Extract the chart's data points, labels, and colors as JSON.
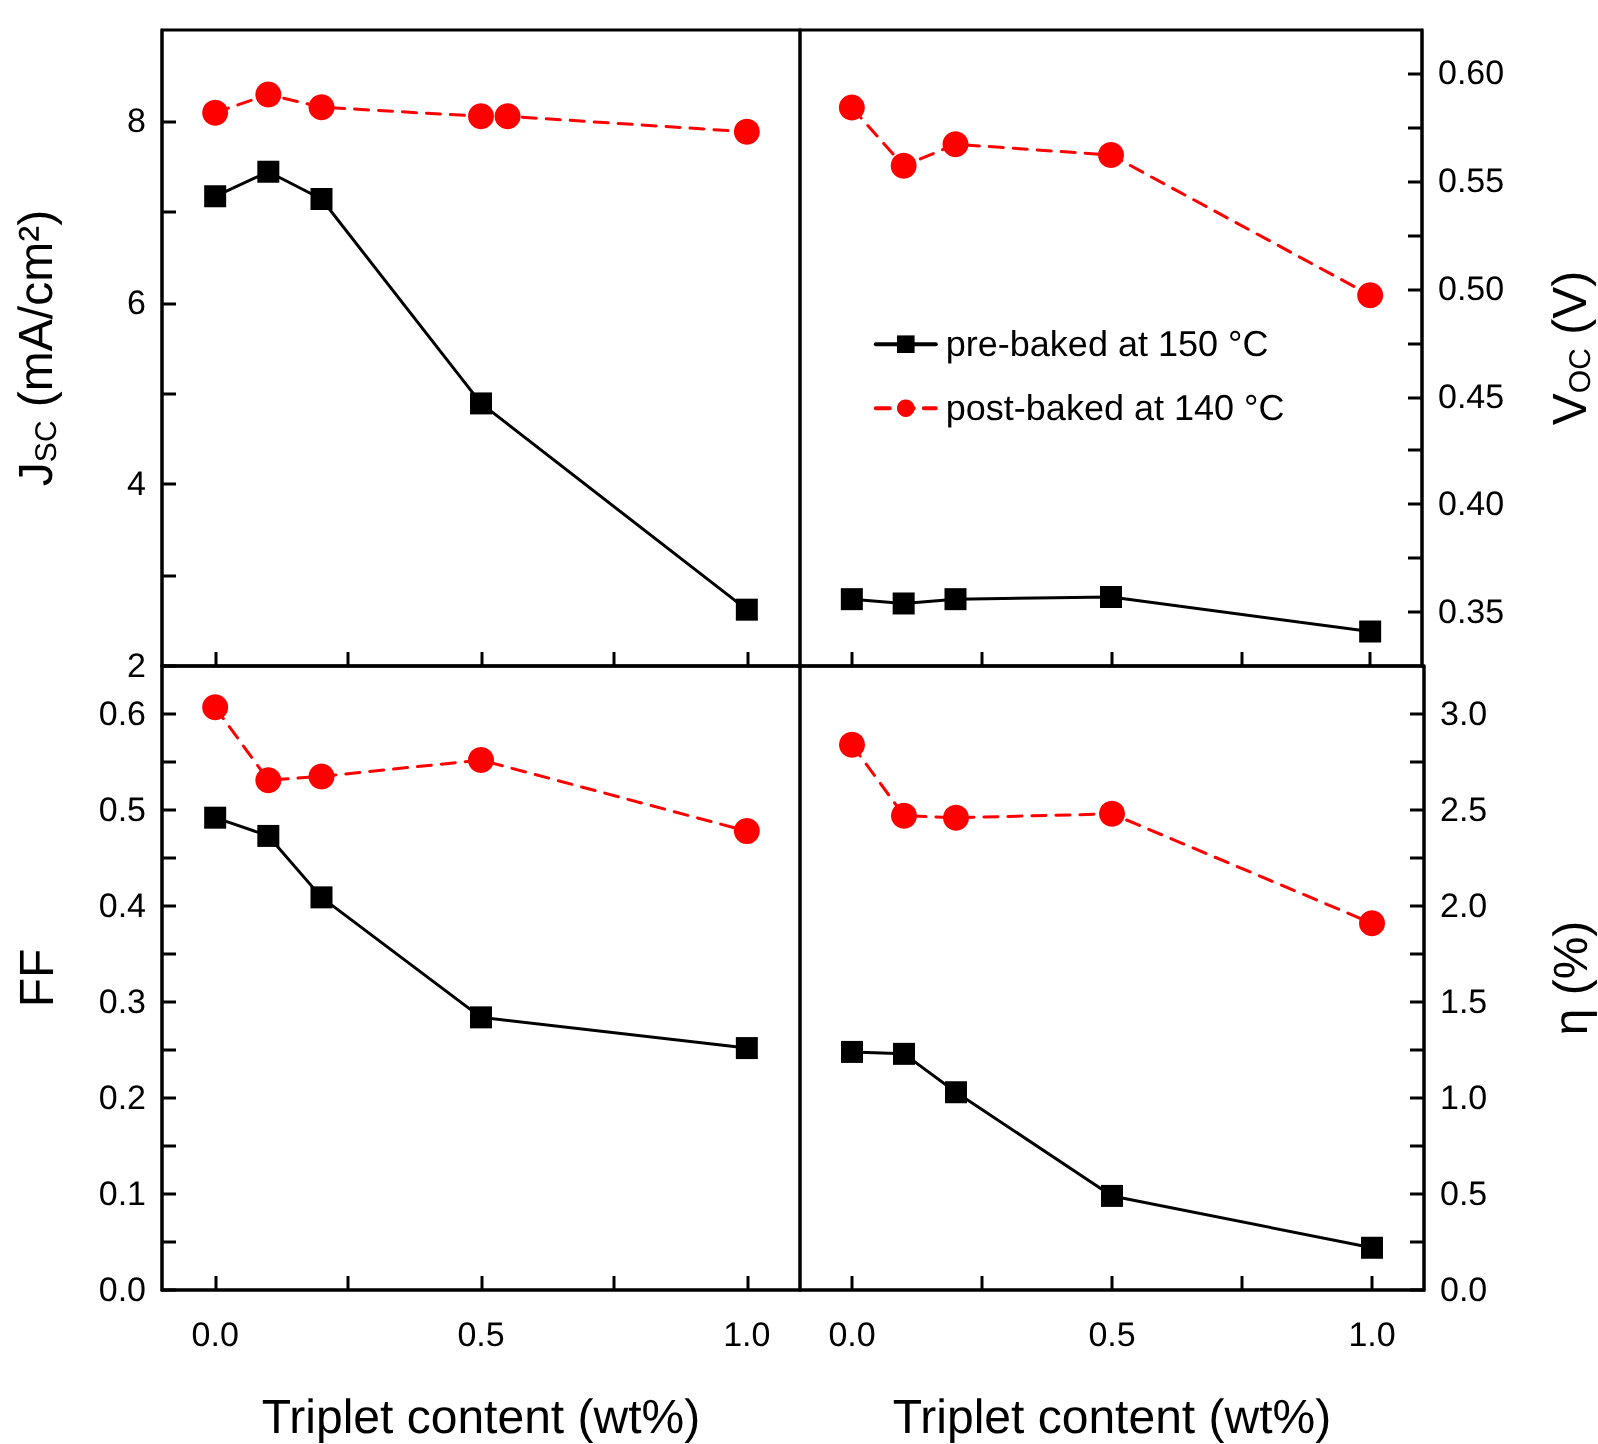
{
  "chart_data": [
    {
      "type": "line",
      "ylabel": "J$_{SC}$ (mA/cm²)",
      "x": [
        0,
        0.1,
        0.2,
        0.5,
        1.0
      ],
      "xlim": [
        -0.1,
        1.1
      ],
      "xticks": [
        {
          "value": 0,
          "label": null
        },
        {
          "value": 0.25,
          "label": null
        },
        {
          "value": 0.5,
          "label": null
        },
        {
          "value": 0.75,
          "label": null
        },
        {
          "value": 1.0,
          "label": null
        }
      ],
      "ylim": [
        2,
        9
      ],
      "yticks": [
        2,
        {
          "value": 3,
          "label": null
        },
        4,
        {
          "value": 5,
          "label": null
        },
        6,
        {
          "value": 7,
          "label": null
        },
        8
      ],
      "tick_labels": "y",
      "legend": false,
      "series": [
        {
          "color": "#000000",
          "marker": "square",
          "line_style": "solid",
          "values": [
            7.17,
            7.44,
            7.14,
            4.89,
            2.62
          ]
        },
        {
          "color": "#ff0000",
          "marker": "circle",
          "line_style": "dashed",
          "x": [
            0,
            0.1,
            0.2,
            0.5,
            0.55,
            1.0
          ],
          "values": [
            8.09,
            8.29,
            8.15,
            8.05,
            8.05,
            7.88
          ]
        }
      ]
    },
    {
      "type": "line",
      "ylabel": "V$_{OC}$ (V)",
      "x": [
        0,
        0.1,
        0.2,
        0.5,
        1.0
      ],
      "xlim": [
        -0.1,
        1.1
      ],
      "xticks": [
        {
          "value": 0,
          "label": null
        },
        {
          "value": 0.25,
          "label": null
        },
        {
          "value": 0.5,
          "label": null
        },
        {
          "value": 0.75,
          "label": null
        },
        {
          "value": 1.0,
          "label": null
        }
      ],
      "ylim": [
        0.325,
        0.62
      ],
      "yticks": [
        {
          "value": 0.35,
          "label": "0.35"
        },
        {
          "value": 0.375,
          "label": null
        },
        {
          "value": 0.4,
          "label": "0.40"
        },
        {
          "value": 0.425,
          "label": null
        },
        {
          "value": 0.45,
          "label": "0.45"
        },
        {
          "value": 0.475,
          "label": null
        },
        {
          "value": 0.5,
          "label": "0.50"
        },
        {
          "value": 0.525,
          "label": null
        },
        {
          "value": 0.55,
          "label": "0.55"
        },
        {
          "value": 0.575,
          "label": null
        },
        {
          "value": 0.6,
          "label": "0.60"
        }
      ],
      "tick_labels": "y",
      "legend": "center",
      "series": [
        {
          "name": "pre-baked at 150 °C",
          "color": "#000000",
          "marker": "square",
          "line_style": "solid",
          "values": [
            0.356,
            0.354,
            0.356,
            0.357,
            0.341
          ]
        },
        {
          "name": "post-baked at 140 °C",
          "color": "#ff0000",
          "marker": "circle",
          "line_style": "dashed",
          "values": [
            0.584,
            0.557,
            0.567,
            0.562,
            0.497
          ]
        }
      ]
    },
    {
      "type": "line",
      "xlabel": "Triplet content (wt%)",
      "ylabel": "FF",
      "x": [
        0,
        0.1,
        0.2,
        0.5,
        1.0
      ],
      "xlim": [
        -0.1,
        1.1
      ],
      "xticks": [
        {
          "value": 0,
          "label": "0.0"
        },
        {
          "value": 0.25,
          "label": null
        },
        {
          "value": 0.5,
          "label": "0.5"
        },
        {
          "value": 0.75,
          "label": null
        },
        {
          "value": 1.0,
          "label": "1.0"
        }
      ],
      "ylim": [
        0,
        0.65
      ],
      "yticks": [
        {
          "value": 0,
          "label": "0.0"
        },
        {
          "value": 0.05,
          "label": null
        },
        0.1,
        {
          "value": 0.15,
          "label": null
        },
        0.2,
        {
          "value": 0.25,
          "label": null
        },
        0.3,
        {
          "value": 0.35,
          "label": null
        },
        0.4,
        {
          "value": 0.45,
          "label": null
        },
        0.5,
        {
          "value": 0.55,
          "label": null
        },
        0.6
      ],
      "legend": false,
      "series": [
        {
          "color": "#000000",
          "marker": "square",
          "line_style": "solid",
          "values": [
            0.492,
            0.473,
            0.409,
            0.284,
            0.252
          ]
        },
        {
          "color": "#ff0000",
          "marker": "circle",
          "line_style": "dashed",
          "values": [
            0.607,
            0.531,
            0.535,
            0.552,
            0.478
          ]
        }
      ]
    },
    {
      "type": "line",
      "xlabel": "Triplet content (wt%)",
      "ylabel": "η (%)",
      "x": [
        0,
        0.1,
        0.2,
        0.5,
        1.0
      ],
      "xlim": [
        -0.1,
        1.1
      ],
      "xticks": [
        {
          "value": 0,
          "label": "0.0"
        },
        {
          "value": 0.25,
          "label": null
        },
        {
          "value": 0.5,
          "label": "0.5"
        },
        {
          "value": 0.75,
          "label": null
        },
        {
          "value": 1.0,
          "label": "1.0"
        }
      ],
      "ylim": [
        0,
        3.25
      ],
      "yticks": [
        {
          "value": 0,
          "label": "0.0"
        },
        {
          "value": 0.25,
          "label": null
        },
        0.5,
        {
          "value": 0.75,
          "label": null
        },
        {
          "value": 1,
          "label": "1.0"
        },
        {
          "value": 1.25,
          "label": null
        },
        1.5,
        {
          "value": 1.75,
          "label": null
        },
        {
          "value": 2,
          "label": "2.0"
        },
        {
          "value": 2.25,
          "label": null
        },
        2.5,
        {
          "value": 2.75,
          "label": null
        },
        {
          "value": 3,
          "label": "3.0"
        }
      ],
      "legend": false,
      "series": [
        {
          "color": "#000000",
          "marker": "square",
          "line_style": "solid",
          "values": [
            1.24,
            1.23,
            1.03,
            0.49,
            0.22
          ]
        },
        {
          "color": "#ff0000",
          "marker": "circle",
          "line_style": "dashed",
          "values": [
            2.84,
            2.47,
            2.46,
            2.48,
            1.91
          ]
        }
      ]
    }
  ]
}
